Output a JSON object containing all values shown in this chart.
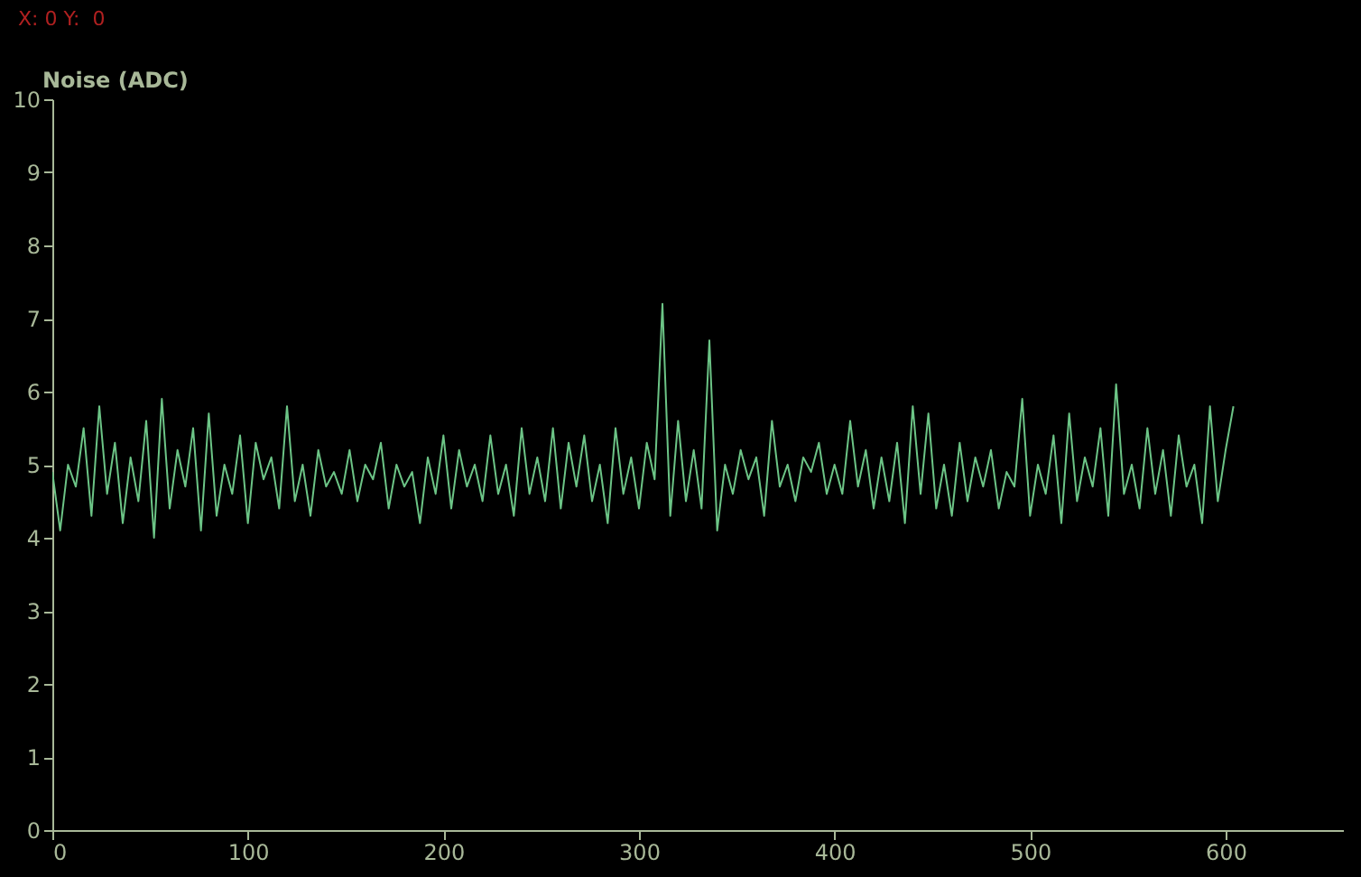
{
  "chart_data": {
    "type": "line",
    "ylabel": "Noise (ADC)",
    "annotations": [
      "X: 0 Y:  0"
    ],
    "xlim": [
      0,
      660
    ],
    "ylim": [
      0,
      10
    ],
    "xticks": [
      0,
      100,
      200,
      300,
      400,
      500,
      600
    ],
    "yticks": [
      0,
      1,
      2,
      3,
      4,
      5,
      6,
      7,
      8,
      9,
      10
    ],
    "grid": false,
    "x": [
      0,
      4,
      8,
      12,
      16,
      20,
      24,
      28,
      32,
      36,
      40,
      44,
      48,
      52,
      56,
      60,
      64,
      68,
      72,
      76,
      80,
      84,
      88,
      92,
      96,
      100,
      104,
      108,
      112,
      116,
      120,
      124,
      128,
      132,
      136,
      140,
      144,
      148,
      152,
      156,
      160,
      164,
      168,
      172,
      176,
      180,
      184,
      188,
      192,
      196,
      200,
      204,
      208,
      212,
      216,
      220,
      224,
      228,
      232,
      236,
      240,
      244,
      248,
      252,
      256,
      260,
      264,
      268,
      272,
      276,
      280,
      284,
      288,
      292,
      296,
      300,
      304,
      308,
      312,
      316,
      320,
      324,
      328,
      332,
      336,
      340,
      344,
      348,
      352,
      356,
      360,
      364,
      368,
      372,
      376,
      380,
      384,
      388,
      392,
      396,
      400,
      404,
      408,
      412,
      416,
      420,
      424,
      428,
      432,
      436,
      440,
      444,
      448,
      452,
      456,
      460,
      464,
      468,
      472,
      476,
      480,
      484,
      488,
      492,
      496,
      500,
      504,
      508,
      512,
      516,
      520,
      524,
      528,
      532,
      536,
      540,
      544,
      548,
      552,
      556,
      560,
      564,
      568,
      572,
      576,
      580,
      584,
      588,
      592,
      596,
      600,
      604
    ],
    "series": [
      {
        "color": "#6cc486",
        "values": [
          4.9,
          4.1,
          5.0,
          4.7,
          5.5,
          4.3,
          5.8,
          4.6,
          5.3,
          4.2,
          5.1,
          4.5,
          5.6,
          4.0,
          5.9,
          4.4,
          5.2,
          4.7,
          5.5,
          4.1,
          5.7,
          4.3,
          5.0,
          4.6,
          5.4,
          4.2,
          5.3,
          4.8,
          5.1,
          4.4,
          5.8,
          4.5,
          5.0,
          4.3,
          5.2,
          4.7,
          4.9,
          4.6,
          5.2,
          4.5,
          5.0,
          4.8,
          5.3,
          4.4,
          5.0,
          4.7,
          4.9,
          4.2,
          5.1,
          4.6,
          5.4,
          4.4,
          5.2,
          4.7,
          5.0,
          4.5,
          5.4,
          4.6,
          5.0,
          4.3,
          5.5,
          4.6,
          5.1,
          4.5,
          5.5,
          4.4,
          5.3,
          4.7,
          5.4,
          4.5,
          5.0,
          4.2,
          5.5,
          4.6,
          5.1,
          4.4,
          5.3,
          4.8,
          7.2,
          4.3,
          5.6,
          4.5,
          5.2,
          4.4,
          6.7,
          4.1,
          5.0,
          4.6,
          5.2,
          4.8,
          5.1,
          4.3,
          5.6,
          4.7,
          5.0,
          4.5,
          5.1,
          4.9,
          5.3,
          4.6,
          5.0,
          4.6,
          5.6,
          4.7,
          5.2,
          4.4,
          5.1,
          4.5,
          5.3,
          4.2,
          5.8,
          4.6,
          5.7,
          4.4,
          5.0,
          4.3,
          5.3,
          4.5,
          5.1,
          4.7,
          5.2,
          4.4,
          4.9,
          4.7,
          5.9,
          4.3,
          5.0,
          4.6,
          5.4,
          4.2,
          5.7,
          4.5,
          5.1,
          4.7,
          5.5,
          4.3,
          6.1,
          4.6,
          5.0,
          4.4,
          5.5,
          4.6,
          5.2,
          4.3,
          5.4,
          4.7,
          5.0,
          4.2,
          5.8,
          4.5,
          5.2,
          5.8
        ]
      }
    ]
  }
}
